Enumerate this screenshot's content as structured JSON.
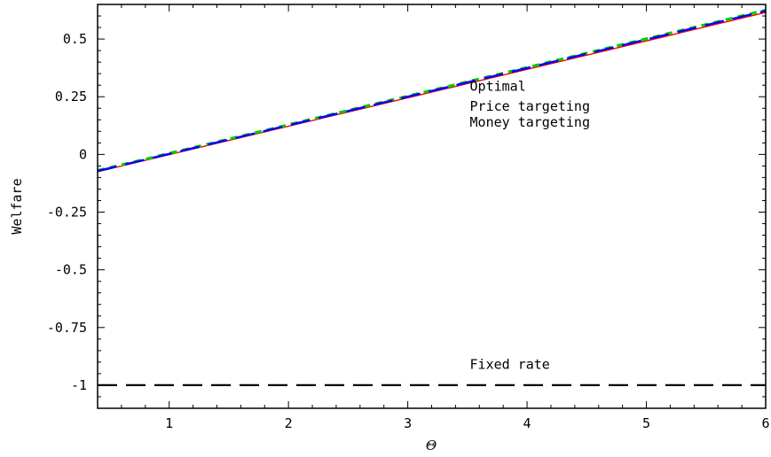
{
  "chart_data": {
    "type": "line",
    "title": "",
    "xlabel": "Θ",
    "ylabel": "Welfare",
    "xlim": [
      0.4,
      6
    ],
    "ylim": [
      -1.1,
      0.65
    ],
    "xticks": [
      1,
      2,
      3,
      4,
      5,
      6
    ],
    "xtick_labels": [
      "1",
      "2",
      "3",
      "4",
      "5",
      "6"
    ],
    "yticks": [
      0.5,
      0.25,
      0,
      -0.25,
      -0.5,
      -0.75,
      -1
    ],
    "ytick_labels": [
      "0.5",
      "0.25",
      "0",
      "-0.25",
      "-0.5",
      "-0.75",
      "-1"
    ],
    "grid": false,
    "legend_placement": "inline labels near curves",
    "series": [
      {
        "name": "Optimal",
        "color": "#ff0000",
        "style": "solid",
        "x": [
          0.4,
          6
        ],
        "y": [
          -0.075,
          0.615
        ]
      },
      {
        "name": "Price targeting",
        "color": "#00cc00",
        "style": "dashed",
        "x": [
          0.4,
          6
        ],
        "y": [
          -0.07,
          0.625
        ]
      },
      {
        "name": "Money targeting",
        "color": "#0000ff",
        "style": "long-dashed",
        "x": [
          0.4,
          6
        ],
        "y": [
          -0.072,
          0.622
        ]
      },
      {
        "name": "Fixed rate",
        "color": "#000000",
        "style": "long-dashed",
        "x": [
          0.4,
          6
        ],
        "y": [
          -1.0,
          -1.0
        ]
      }
    ],
    "annotations": [
      {
        "text": "Optimal",
        "x": 3.52,
        "y": 0.275
      },
      {
        "text": "Price targeting",
        "x": 3.52,
        "y": 0.19
      },
      {
        "text": "Money targeting",
        "x": 3.52,
        "y": 0.12
      },
      {
        "text": "Fixed rate",
        "x": 3.52,
        "y": -0.93
      }
    ]
  }
}
